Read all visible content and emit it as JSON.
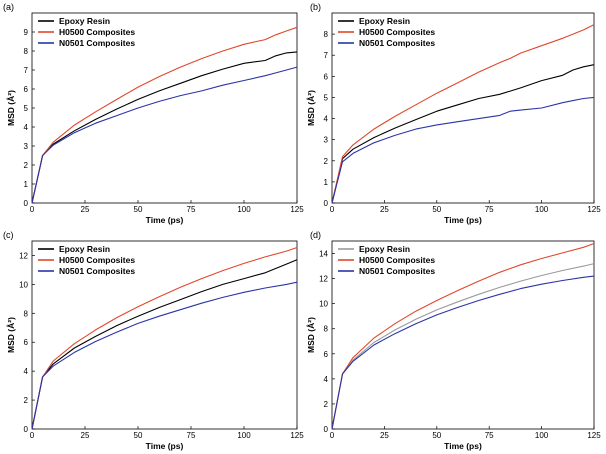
{
  "chart_data": [
    {
      "type": "line",
      "panel_label": "(a)",
      "xlabel": "Time (ps)",
      "ylabel": "MSD (Å²)",
      "xlim": [
        0,
        125
      ],
      "ylim": [
        0,
        10
      ],
      "xticks": [
        0,
        25,
        50,
        75,
        100,
        125
      ],
      "yticks": [
        0,
        1,
        2,
        3,
        4,
        5,
        6,
        7,
        8,
        9
      ],
      "x": [
        0,
        5,
        10,
        20,
        30,
        40,
        50,
        60,
        70,
        80,
        90,
        100,
        110,
        115,
        120,
        125
      ],
      "series": [
        {
          "name": "Epoxy Resin",
          "color": "#000000",
          "values": [
            0,
            2.5,
            3.1,
            3.8,
            4.4,
            4.95,
            5.45,
            5.9,
            6.3,
            6.7,
            7.05,
            7.35,
            7.5,
            7.75,
            7.9,
            7.95
          ]
        },
        {
          "name": "H0500 Composites",
          "color": "#e0472c",
          "values": [
            0,
            2.5,
            3.2,
            4.1,
            4.8,
            5.45,
            6.1,
            6.65,
            7.15,
            7.6,
            8.0,
            8.35,
            8.6,
            8.85,
            9.05,
            9.25
          ]
        },
        {
          "name": "N0501 Composites",
          "color": "#2a34a8",
          "values": [
            0,
            2.5,
            3.05,
            3.7,
            4.2,
            4.6,
            5.0,
            5.35,
            5.65,
            5.9,
            6.2,
            6.45,
            6.7,
            6.85,
            7.0,
            7.15
          ]
        }
      ]
    },
    {
      "type": "line",
      "panel_label": "(b)",
      "xlabel": "Time (ps)",
      "ylabel": "MSD (Å²)",
      "xlim": [
        0,
        125
      ],
      "ylim": [
        0,
        9
      ],
      "xticks": [
        0,
        25,
        50,
        75,
        100,
        125
      ],
      "yticks": [
        0,
        1,
        2,
        3,
        4,
        5,
        6,
        7,
        8
      ],
      "x": [
        0,
        5,
        10,
        20,
        30,
        40,
        50,
        60,
        70,
        80,
        85,
        90,
        100,
        110,
        115,
        120,
        125
      ],
      "series": [
        {
          "name": "Epoxy Resin",
          "color": "#000000",
          "values": [
            0,
            2.1,
            2.55,
            3.1,
            3.55,
            3.95,
            4.35,
            4.65,
            4.95,
            5.15,
            5.3,
            5.45,
            5.8,
            6.05,
            6.3,
            6.45,
            6.55
          ]
        },
        {
          "name": "H0500 Composites",
          "color": "#e0472c",
          "values": [
            0,
            2.2,
            2.75,
            3.5,
            4.1,
            4.65,
            5.2,
            5.7,
            6.2,
            6.65,
            6.85,
            7.1,
            7.45,
            7.8,
            8.0,
            8.2,
            8.45
          ]
        },
        {
          "name": "N0501 Composites",
          "color": "#2a34a8",
          "values": [
            0,
            1.95,
            2.35,
            2.85,
            3.2,
            3.5,
            3.7,
            3.85,
            4.0,
            4.15,
            4.35,
            4.4,
            4.5,
            4.75,
            4.85,
            4.95,
            5.0
          ]
        }
      ]
    },
    {
      "type": "line",
      "panel_label": "(c)",
      "xlabel": "Time (ps)",
      "ylabel": "MSD (Å²)",
      "xlim": [
        0,
        125
      ],
      "ylim": [
        0,
        13
      ],
      "xticks": [
        0,
        25,
        50,
        75,
        100,
        125
      ],
      "yticks": [
        0,
        2,
        4,
        6,
        8,
        10,
        12
      ],
      "x": [
        0,
        5,
        10,
        20,
        30,
        40,
        50,
        60,
        70,
        80,
        90,
        100,
        110,
        120,
        125
      ],
      "series": [
        {
          "name": "Epoxy Resin",
          "color": "#000000",
          "values": [
            0,
            3.6,
            4.5,
            5.6,
            6.4,
            7.15,
            7.8,
            8.4,
            8.95,
            9.5,
            10.0,
            10.4,
            10.8,
            11.4,
            11.7
          ]
        },
        {
          "name": "H0500 Composites",
          "color": "#e0472c",
          "values": [
            0,
            3.6,
            4.7,
            5.9,
            6.85,
            7.7,
            8.45,
            9.15,
            9.8,
            10.4,
            10.95,
            11.45,
            11.9,
            12.3,
            12.55
          ]
        },
        {
          "name": "N0501 Composites",
          "color": "#2a34a8",
          "values": [
            0,
            3.6,
            4.35,
            5.3,
            6.05,
            6.7,
            7.3,
            7.8,
            8.25,
            8.7,
            9.1,
            9.45,
            9.75,
            10.0,
            10.15
          ]
        }
      ]
    },
    {
      "type": "line",
      "panel_label": "(d)",
      "xlabel": "Time (ps)",
      "ylabel": "MSD (Å²)",
      "xlim": [
        0,
        125
      ],
      "ylim": [
        0,
        15
      ],
      "xticks": [
        0,
        25,
        50,
        75,
        100,
        125
      ],
      "yticks": [
        0,
        2,
        4,
        6,
        8,
        10,
        12,
        14
      ],
      "x": [
        0,
        5,
        10,
        20,
        30,
        40,
        50,
        60,
        70,
        80,
        90,
        100,
        110,
        120,
        125
      ],
      "series": [
        {
          "name": "Epoxy Resin",
          "color": "#9a9a9a",
          "values": [
            0,
            4.4,
            5.5,
            6.9,
            7.9,
            8.75,
            9.5,
            10.15,
            10.75,
            11.3,
            11.8,
            12.25,
            12.65,
            13.0,
            13.2
          ]
        },
        {
          "name": "H0500 Composites",
          "color": "#e0472c",
          "values": [
            0,
            4.4,
            5.7,
            7.25,
            8.4,
            9.4,
            10.25,
            11.05,
            11.8,
            12.5,
            13.1,
            13.6,
            14.05,
            14.5,
            14.8
          ]
        },
        {
          "name": "N0501 Composites",
          "color": "#2a34a8",
          "values": [
            0,
            4.4,
            5.4,
            6.7,
            7.6,
            8.4,
            9.1,
            9.7,
            10.25,
            10.75,
            11.2,
            11.55,
            11.85,
            12.1,
            12.2
          ]
        }
      ]
    }
  ]
}
